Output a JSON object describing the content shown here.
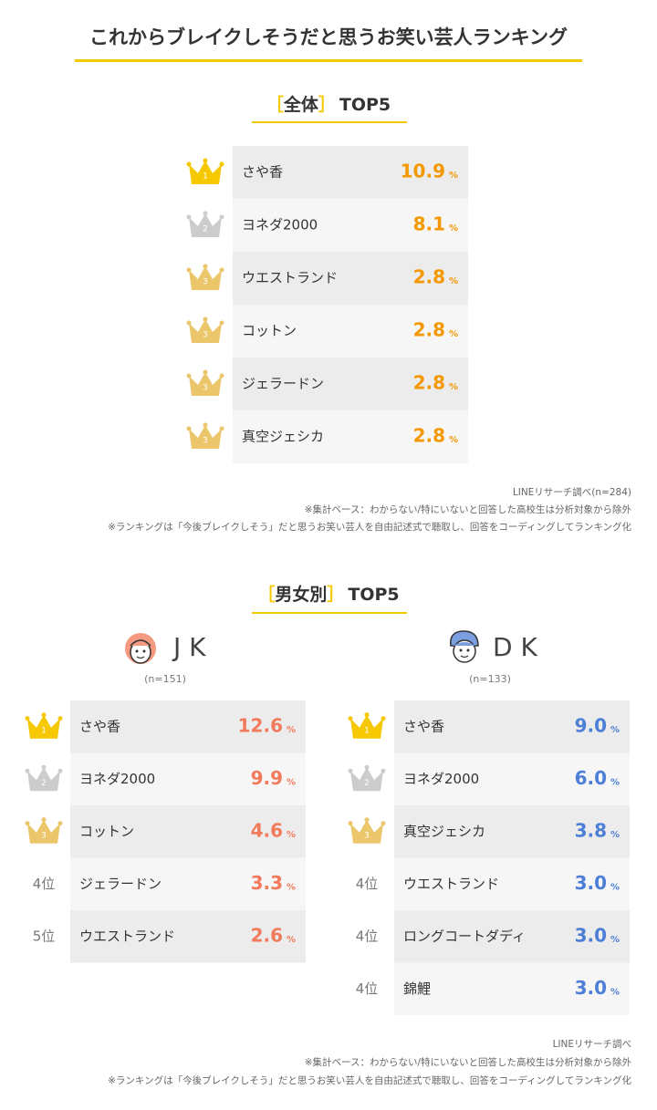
{
  "title": "これからブレイクしそうだと思うお笑い芸人ランキング",
  "unit": "%",
  "overall": {
    "bracket_open": "［",
    "label": "全体",
    "bracket_close": "］",
    "suffix": "TOP5",
    "rows": [
      {
        "rank": 1,
        "name": "さや香",
        "value": "10.9"
      },
      {
        "rank": 2,
        "name": "ヨネダ2000",
        "value": "8.1"
      },
      {
        "rank": 3,
        "name": "ウエストランド",
        "value": "2.8"
      },
      {
        "rank": 3,
        "name": "コットン",
        "value": "2.8"
      },
      {
        "rank": 3,
        "name": "ジェラードン",
        "value": "2.8"
      },
      {
        "rank": 3,
        "name": "真空ジェシカ",
        "value": "2.8"
      }
    ],
    "source": "LINEリサーチ調べ(n=284)",
    "notes": [
      "※集計ベース：わからない/特にいないと回答した高校生は分析対象から除外",
      "※ランキングは「今後ブレイクしそう」だと思うお笑い芸人を自由記述式で聴取し、回答をコーディングしてランキング化"
    ]
  },
  "gender": {
    "bracket_open": "［",
    "label": "男女別",
    "bracket_close": "］",
    "suffix": "TOP5",
    "groups": [
      {
        "name": "J K",
        "sample": "(n=151)",
        "rows": [
          {
            "rank": 1,
            "name": "さや香",
            "value": "12.6"
          },
          {
            "rank": 2,
            "name": "ヨネダ2000",
            "value": "9.9"
          },
          {
            "rank": 3,
            "name": "コットン",
            "value": "4.6"
          },
          {
            "rank": "4位",
            "name": "ジェラードン",
            "value": "3.3"
          },
          {
            "rank": "5位",
            "name": "ウエストランド",
            "value": "2.6"
          }
        ]
      },
      {
        "name": "D K",
        "sample": "(n=133)",
        "rows": [
          {
            "rank": 1,
            "name": "さや香",
            "value": "9.0"
          },
          {
            "rank": 2,
            "name": "ヨネダ2000",
            "value": "6.0"
          },
          {
            "rank": 3,
            "name": "真空ジェシカ",
            "value": "3.8"
          },
          {
            "rank": "4位",
            "name": "ウエストランド",
            "value": "3.0"
          },
          {
            "rank": "4位",
            "name": "ロングコートダディ",
            "value": "3.0"
          },
          {
            "rank": "4位",
            "name": "錦鯉",
            "value": "3.0"
          }
        ]
      }
    ],
    "source": "LINEリサーチ調べ",
    "notes": [
      "※集計ベース：わからない/特にいないと回答した高校生は分析対象から除外",
      "※ランキングは「今後ブレイクしそう」だと思うお笑い芸人を自由記述式で聴取し、回答をコーディングしてランキング化"
    ]
  }
}
